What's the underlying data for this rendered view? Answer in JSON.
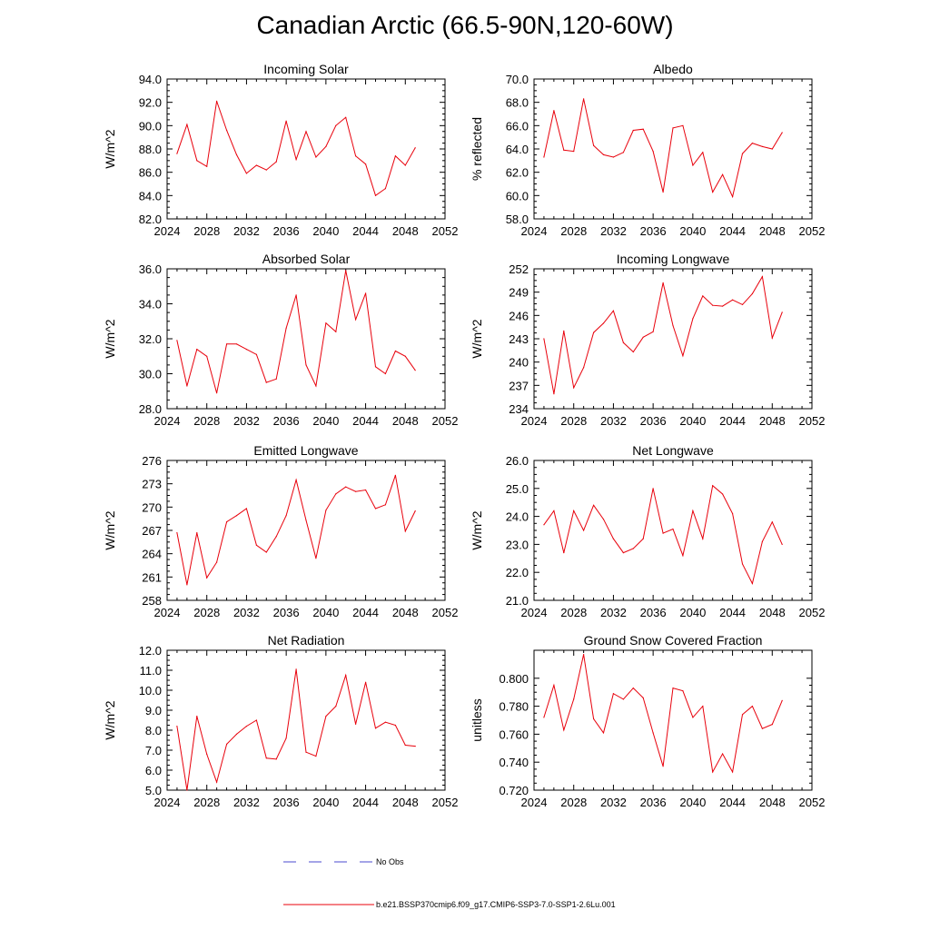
{
  "title": "Canadian Arctic (66.5-90N,120-60W)",
  "colors": {
    "model": "#e8000b",
    "obs": "#4a4acf",
    "axis": "#000000"
  },
  "legend": {
    "obs_label": "No Obs",
    "model_label": "b.e21.BSSP370cmip6.f09_g17.CMIP6-SSP3-7.0-SSP1-2.6Lu.001"
  },
  "chart_data": [
    {
      "type": "line",
      "title": "Incoming Solar",
      "xlabel": "",
      "ylabel": "W/m^2",
      "xlim": [
        2024,
        2052
      ],
      "ylim": [
        82,
        94
      ],
      "xticks": [
        2024,
        2028,
        2032,
        2036,
        2040,
        2044,
        2048,
        2052
      ],
      "xtick_labels": [
        "2024",
        "2028",
        "2032",
        "2036",
        "2040",
        "2044",
        "2048",
        "2052"
      ],
      "yticks": [
        82,
        84,
        86,
        88,
        90,
        92,
        94
      ],
      "ytick_labels": [
        "82.0",
        "84.0",
        "86.0",
        "88.0",
        "90.0",
        "92.0",
        "94.0"
      ],
      "x": [
        2025,
        2026,
        2027,
        2028,
        2029,
        2030,
        2031,
        2032,
        2033,
        2034,
        2035,
        2036,
        2037,
        2038,
        2039,
        2040,
        2041,
        2042,
        2043,
        2044,
        2045,
        2046,
        2047,
        2048,
        2049
      ],
      "values": [
        87.6,
        90.1,
        87.0,
        86.5,
        92.1,
        89.6,
        87.5,
        85.9,
        86.6,
        86.2,
        86.9,
        90.4,
        87.1,
        89.5,
        87.3,
        88.2,
        90.0,
        90.7,
        87.4,
        86.7,
        84.0,
        84.6,
        87.4,
        86.6,
        88.1
      ]
    },
    {
      "type": "line",
      "title": "Albedo",
      "xlabel": "",
      "ylabel": "% reflected",
      "xlim": [
        2024,
        2052
      ],
      "ylim": [
        58,
        70
      ],
      "xticks": [
        2024,
        2028,
        2032,
        2036,
        2040,
        2044,
        2048,
        2052
      ],
      "xtick_labels": [
        "2024",
        "2028",
        "2032",
        "2036",
        "2040",
        "2044",
        "2048",
        "2052"
      ],
      "yticks": [
        58,
        60,
        62,
        64,
        66,
        68,
        70
      ],
      "ytick_labels": [
        "58.0",
        "60.0",
        "62.0",
        "64.0",
        "66.0",
        "68.0",
        "70.0"
      ],
      "x": [
        2025,
        2026,
        2027,
        2028,
        2029,
        2030,
        2031,
        2032,
        2033,
        2034,
        2035,
        2036,
        2037,
        2038,
        2039,
        2040,
        2041,
        2042,
        2043,
        2044,
        2045,
        2046,
        2047,
        2048,
        2049
      ],
      "values": [
        63.3,
        67.3,
        63.9,
        63.8,
        68.3,
        64.3,
        63.5,
        63.3,
        63.7,
        65.6,
        65.7,
        63.8,
        60.3,
        65.8,
        66.0,
        62.6,
        63.7,
        60.3,
        61.8,
        59.9,
        63.6,
        64.5,
        64.2,
        64.0,
        65.4
      ]
    },
    {
      "type": "line",
      "title": "Absorbed Solar",
      "xlabel": "",
      "ylabel": "W/m^2",
      "xlim": [
        2024,
        2052
      ],
      "ylim": [
        28,
        36
      ],
      "xticks": [
        2024,
        2028,
        2032,
        2036,
        2040,
        2044,
        2048,
        2052
      ],
      "xtick_labels": [
        "2024",
        "2028",
        "2032",
        "2036",
        "2040",
        "2044",
        "2048",
        "2052"
      ],
      "yticks": [
        28,
        30,
        32,
        34,
        36
      ],
      "ytick_labels": [
        "28.0",
        "30.0",
        "32.0",
        "34.0",
        "36.0"
      ],
      "x": [
        2025,
        2026,
        2027,
        2028,
        2029,
        2030,
        2031,
        2032,
        2033,
        2034,
        2035,
        2036,
        2037,
        2038,
        2039,
        2040,
        2041,
        2042,
        2043,
        2044,
        2045,
        2046,
        2047,
        2048,
        2049
      ],
      "values": [
        31.9,
        29.3,
        31.4,
        31.0,
        28.9,
        31.7,
        31.7,
        31.4,
        31.1,
        29.5,
        29.7,
        32.6,
        34.5,
        30.5,
        29.3,
        32.9,
        32.4,
        35.9,
        33.1,
        34.6,
        30.4,
        30.0,
        31.3,
        31.0,
        30.2
      ]
    },
    {
      "type": "line",
      "title": "Incoming Longwave",
      "xlabel": "",
      "ylabel": "W/m^2",
      "xlim": [
        2024,
        2052
      ],
      "ylim": [
        234,
        252
      ],
      "xticks": [
        2024,
        2028,
        2032,
        2036,
        2040,
        2044,
        2048,
        2052
      ],
      "xtick_labels": [
        "2024",
        "2028",
        "2032",
        "2036",
        "2040",
        "2044",
        "2048",
        "2052"
      ],
      "yticks": [
        234,
        237,
        240,
        243,
        246,
        249,
        252
      ],
      "ytick_labels": [
        "234",
        "237",
        "240",
        "243",
        "246",
        "249",
        "252"
      ],
      "x": [
        2025,
        2026,
        2027,
        2028,
        2029,
        2030,
        2031,
        2032,
        2033,
        2034,
        2035,
        2036,
        2037,
        2038,
        2039,
        2040,
        2041,
        2042,
        2043,
        2044,
        2045,
        2046,
        2047,
        2048,
        2049
      ],
      "values": [
        243.0,
        235.9,
        244.0,
        236.7,
        239.3,
        243.8,
        245.0,
        246.6,
        242.5,
        241.3,
        243.2,
        243.9,
        250.2,
        244.7,
        240.8,
        245.6,
        248.5,
        247.3,
        247.2,
        248.0,
        247.4,
        248.8,
        251.0,
        243.1,
        246.4
      ]
    },
    {
      "type": "line",
      "title": "Emitted Longwave",
      "xlabel": "",
      "ylabel": "W/m^2",
      "xlim": [
        2024,
        2052
      ],
      "ylim": [
        258,
        276
      ],
      "xticks": [
        2024,
        2028,
        2032,
        2036,
        2040,
        2044,
        2048,
        2052
      ],
      "xtick_labels": [
        "2024",
        "2028",
        "2032",
        "2036",
        "2040",
        "2044",
        "2048",
        "2052"
      ],
      "yticks": [
        258,
        261,
        264,
        267,
        270,
        273,
        276
      ],
      "ytick_labels": [
        "258",
        "261",
        "264",
        "267",
        "270",
        "273",
        "276"
      ],
      "x": [
        2025,
        2026,
        2027,
        2028,
        2029,
        2030,
        2031,
        2032,
        2033,
        2034,
        2035,
        2036,
        2037,
        2038,
        2039,
        2040,
        2041,
        2042,
        2043,
        2044,
        2045,
        2046,
        2047,
        2048,
        2049
      ],
      "values": [
        266.7,
        260.0,
        266.7,
        260.9,
        262.9,
        268.1,
        268.9,
        269.8,
        265.1,
        264.2,
        266.2,
        268.9,
        273.5,
        268.3,
        263.4,
        269.6,
        271.7,
        272.6,
        272.0,
        272.2,
        269.8,
        270.3,
        274.1,
        266.9,
        269.5
      ]
    },
    {
      "type": "line",
      "title": "Net Longwave",
      "xlabel": "",
      "ylabel": "W/m^2",
      "xlim": [
        2024,
        2052
      ],
      "ylim": [
        21,
        26
      ],
      "xticks": [
        2024,
        2028,
        2032,
        2036,
        2040,
        2044,
        2048,
        2052
      ],
      "xtick_labels": [
        "2024",
        "2028",
        "2032",
        "2036",
        "2040",
        "2044",
        "2048",
        "2052"
      ],
      "yticks": [
        21,
        22,
        23,
        24,
        25,
        26
      ],
      "ytick_labels": [
        "21.0",
        "22.0",
        "23.0",
        "24.0",
        "25.0",
        "26.0"
      ],
      "x": [
        2025,
        2026,
        2027,
        2028,
        2029,
        2030,
        2031,
        2032,
        2033,
        2034,
        2035,
        2036,
        2037,
        2038,
        2039,
        2040,
        2041,
        2042,
        2043,
        2044,
        2045,
        2046,
        2047,
        2048,
        2049
      ],
      "values": [
        23.7,
        24.2,
        22.7,
        24.2,
        23.5,
        24.4,
        23.9,
        23.2,
        22.7,
        22.85,
        23.2,
        25.0,
        23.4,
        23.55,
        22.6,
        24.2,
        23.2,
        25.1,
        24.8,
        24.1,
        22.3,
        21.6,
        23.1,
        23.8,
        23.0
      ]
    },
    {
      "type": "line",
      "title": "Net Radiation",
      "xlabel": "",
      "ylabel": "W/m^2",
      "xlim": [
        2024,
        2052
      ],
      "ylim": [
        5,
        12
      ],
      "xticks": [
        2024,
        2028,
        2032,
        2036,
        2040,
        2044,
        2048,
        2052
      ],
      "xtick_labels": [
        "2024",
        "2028",
        "2032",
        "2036",
        "2040",
        "2044",
        "2048",
        "2052"
      ],
      "yticks": [
        5,
        6,
        7,
        8,
        9,
        10,
        11,
        12
      ],
      "ytick_labels": [
        "5.0",
        "6.0",
        "7.0",
        "8.0",
        "9.0",
        "10.0",
        "11.0",
        "12.0"
      ],
      "x": [
        2025,
        2026,
        2027,
        2028,
        2029,
        2030,
        2031,
        2032,
        2033,
        2034,
        2035,
        2036,
        2037,
        2038,
        2039,
        2040,
        2041,
        2042,
        2043,
        2044,
        2045,
        2046,
        2047,
        2048,
        2049
      ],
      "values": [
        8.2,
        5.0,
        8.7,
        6.8,
        5.4,
        7.3,
        7.8,
        8.2,
        8.5,
        6.6,
        6.55,
        7.6,
        11.05,
        6.9,
        6.7,
        8.7,
        9.2,
        10.75,
        8.3,
        10.4,
        8.1,
        8.4,
        8.25,
        7.25,
        7.2
      ]
    },
    {
      "type": "line",
      "title": "Ground Snow Covered Fraction",
      "xlabel": "",
      "ylabel": "unitless",
      "xlim": [
        2024,
        2052
      ],
      "ylim": [
        0.72,
        0.82
      ],
      "xticks": [
        2024,
        2028,
        2032,
        2036,
        2040,
        2044,
        2048,
        2052
      ],
      "xtick_labels": [
        "2024",
        "2028",
        "2032",
        "2036",
        "2040",
        "2044",
        "2048",
        "2052"
      ],
      "yticks": [
        0.72,
        0.74,
        0.76,
        0.78,
        0.8
      ],
      "ytick_labels": [
        "0.720",
        "0.740",
        "0.760",
        "0.780",
        "0.800"
      ],
      "x": [
        2025,
        2026,
        2027,
        2028,
        2029,
        2030,
        2031,
        2032,
        2033,
        2034,
        2035,
        2036,
        2037,
        2038,
        2039,
        2040,
        2041,
        2042,
        2043,
        2044,
        2045,
        2046,
        2047,
        2048,
        2049
      ],
      "values": [
        0.772,
        0.795,
        0.763,
        0.785,
        0.817,
        0.771,
        0.761,
        0.789,
        0.785,
        0.793,
        0.786,
        0.761,
        0.737,
        0.793,
        0.791,
        0.772,
        0.78,
        0.733,
        0.746,
        0.733,
        0.774,
        0.78,
        0.764,
        0.767,
        0.784
      ]
    }
  ]
}
